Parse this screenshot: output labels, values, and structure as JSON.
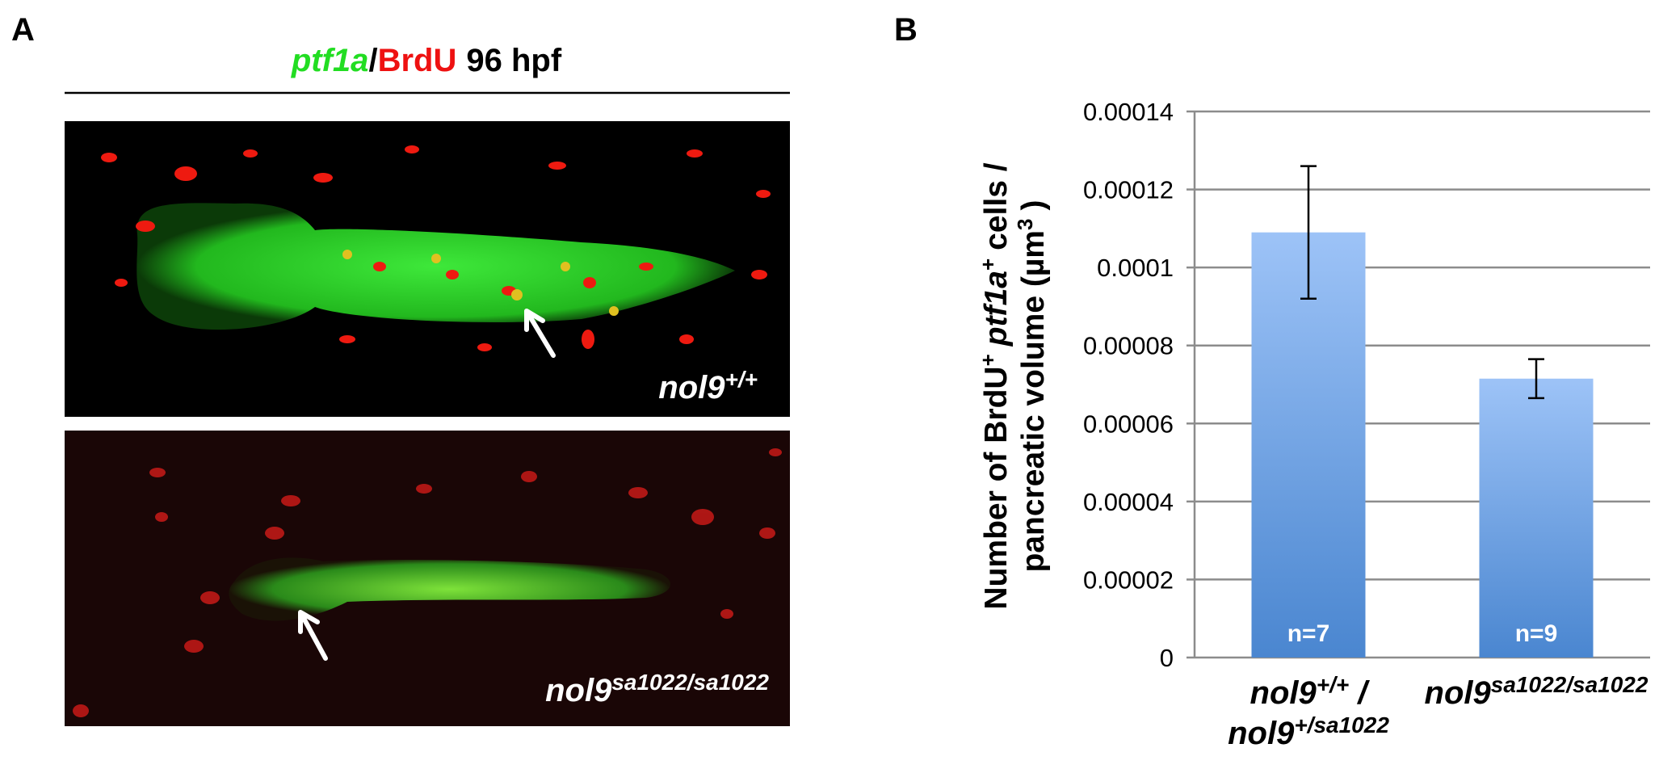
{
  "panel_a": {
    "letter": "A",
    "title": [
      {
        "text": "ptf1a",
        "color": "#22dd22",
        "italic": true
      },
      {
        "text": "/",
        "color": "#000000"
      },
      {
        "text": "BrdU",
        "color": "#ee1111"
      },
      {
        "text": "96 hpf",
        "color": "#000000"
      }
    ],
    "image_labels": [
      {
        "base": "nol9",
        "sup": "+/+"
      },
      {
        "base": "nol9",
        "sup": "sa1022/sa1022"
      }
    ]
  },
  "chart_data": {
    "type": "bar",
    "letter": "B",
    "categories": [
      [
        {
          "base": "nol9",
          "sup": "+/+",
          "after": " /"
        },
        {
          "base": "nol9",
          "sup": "+/sa1022"
        }
      ],
      [
        {
          "base": "nol9",
          "sup": "sa1022/sa1022"
        }
      ]
    ],
    "values": [
      0.000109,
      7.15e-05
    ],
    "errors": [
      1.7e-05,
      5e-06
    ],
    "annotations": [
      "n=7",
      "n=9"
    ],
    "color": "#9dc3f7",
    "y_label": [
      [
        {
          "text": "Number of BrdU"
        },
        {
          "text": "+",
          "sup": true
        },
        {
          "text": "ptf1a",
          "italic": true
        },
        {
          "text": "+",
          "sup": true
        },
        {
          "text": "cells /"
        }
      ],
      [
        {
          "text": "pancreatic volume (µm"
        },
        {
          "text": "3",
          "sup": true
        },
        {
          "text": ")"
        }
      ]
    ],
    "ylim": [
      0,
      0.00014
    ],
    "yticks": [
      0,
      2e-05,
      4e-05,
      6e-05,
      8e-05,
      0.0001,
      0.00012,
      0.00014
    ],
    "grid": true
  }
}
